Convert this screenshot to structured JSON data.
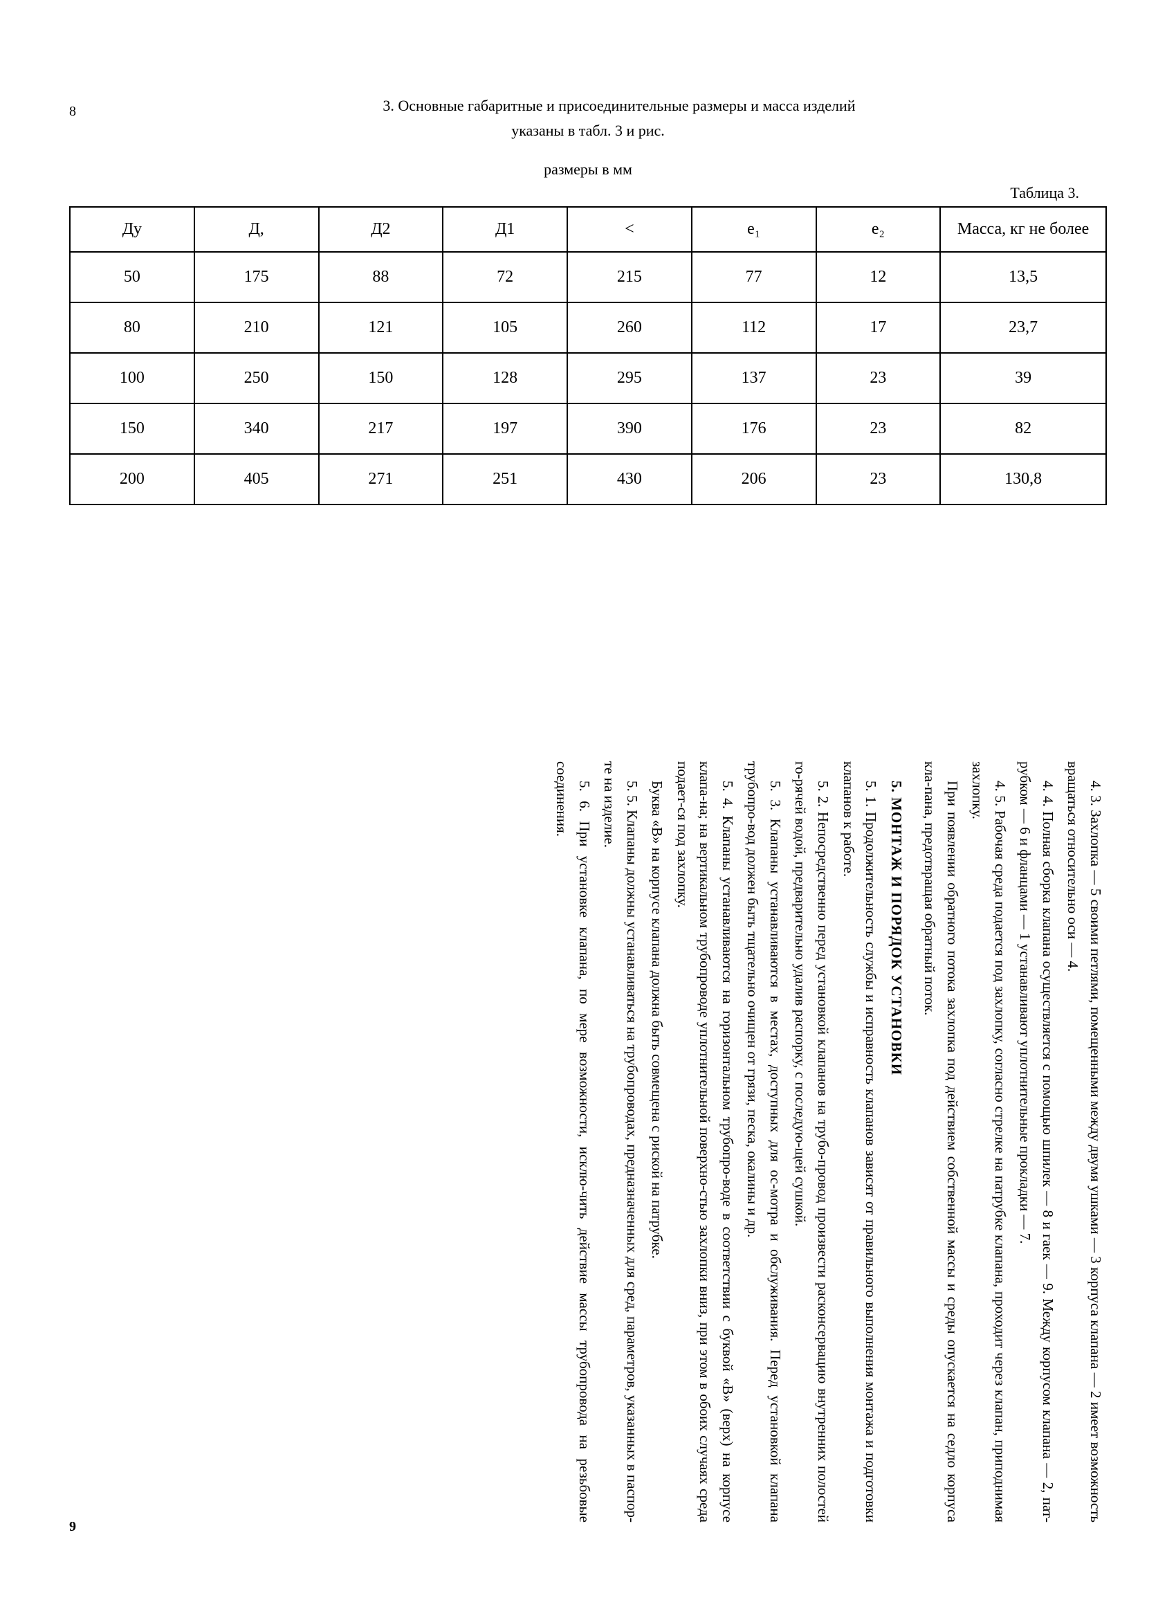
{
  "page_left": "8",
  "page_right": "9",
  "intro_line1": "3. Основные габаритные и присоединительные размеры и масса изделий",
  "intro_line2": "указаны в табл. 3 и рис.",
  "units_label": "размеры в мм",
  "table_label": "Таблица 3.",
  "table": {
    "headers": [
      "Ду",
      "Д,",
      "Д2",
      "Д1",
      "<",
      "е₁",
      "е₂",
      "Масса, кг не более"
    ],
    "rows": [
      [
        "50",
        "175",
        "88",
        "72",
        "215",
        "77",
        "12",
        "13,5"
      ],
      [
        "80",
        "210",
        "121",
        "105",
        "260",
        "112",
        "17",
        "23,7"
      ],
      [
        "100",
        "250",
        "150",
        "128",
        "295",
        "137",
        "23",
        "39"
      ],
      [
        "150",
        "340",
        "217",
        "197",
        "390",
        "176",
        "23",
        "82"
      ],
      [
        "200",
        "405",
        "271",
        "251",
        "430",
        "206",
        "23",
        "130,8"
      ]
    ]
  },
  "body": {
    "p43": "4. 3. Захлопка — 5 своими петлями, помещенными между двумя ушками — 3 корпуса клапана — 2 имеет возможность вращаться относительно оси — 4.",
    "p44": "4. 4. Полная сборка клапана осуществляется с помощью шпилек — 8 и гаек — 9. Между корпусом клапана — 2, пат-рубком — 6 и фланцами — 1 устанавливают уплотнительные прокладки — 7.",
    "p45": "4. 5. Рабочая среда подается под захлопку, согласно стрелке на патрубке клапана, проходит через клапан, приподнимая захлопку.",
    "pflow": "При появлении обратного потока захлопка под действием собственной массы и среды опускается на седло корпуса кла-пана, предотвращая обратный поток.",
    "section5": "5. МОНТАЖ И ПОРЯДОК УСТАНОВКИ",
    "p51": "5. 1. Продолжительность службы и исправность клапанов зависят от правильного выполнения монтажа и подготовки клапанов к работе.",
    "p52": "5. 2. Непосредственно перед установкой клапанов на трубо-провод произвести расконсервацию внутренних полостей го-рячей водой, предварительно удалив распорку, с последую-щей сушкой.",
    "p53": "5. 3. Клапаны устанавливаются в местах, доступных для ос-мотра и обслуживания. Перед установкой клапана трубопро-вод должен быть тщательно очищен от грязи, песка, окалины и др.",
    "p54": "5. 4. Клапаны устанавливаются на горизонтальном трубопро-воде в соответствии с буквой «В» (верх) на корпусе клапа-на; на вертикальном трубопроводе уплотнительной поверхно-стью захлопки вниз, при этом в обоих случаях среда подает-ся под захлопку.",
    "pB": "Буква «В» на корпусе клапана должна быть совмещена с риской на патрубке.",
    "p55": "5. 5. Клапаны должны устанавливаться на трубопроводах, предназначенных для сред, параметров, указанных в паспор-те на изделие.",
    "p56": "5. 6. При установке клапана, по мере возможности, исклю-чить действие массы трубопровода на резьбовые соединения."
  }
}
